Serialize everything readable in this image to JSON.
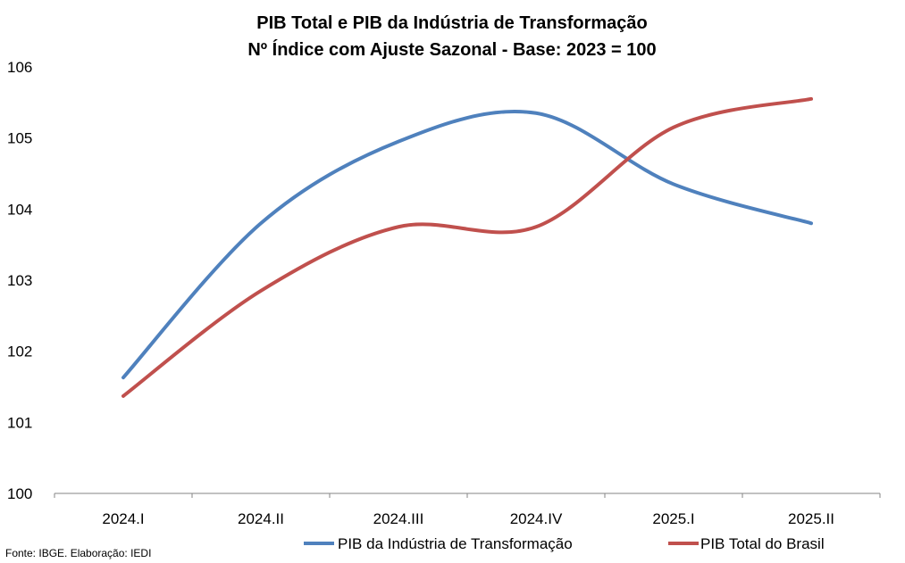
{
  "chart_data": {
    "type": "line",
    "title": "PIB Total e PIB da Indústria de Transformação",
    "subtitle": "Nº Índice com Ajuste Sazonal - Base: 2023 = 100",
    "categories": [
      "2024.I",
      "2024.II",
      "2024.III",
      "2024.IV",
      "2025.I",
      "2025.II"
    ],
    "series": [
      {
        "name": "PIB da Indústria de Transformação",
        "color": "#4F81BD",
        "values": [
          101.63,
          103.8,
          104.95,
          105.35,
          104.35,
          103.8
        ]
      },
      {
        "name": "PIB Total do Brasil",
        "color": "#C0504D",
        "values": [
          101.37,
          102.85,
          103.75,
          103.75,
          105.15,
          105.55
        ]
      }
    ],
    "ylim": [
      100,
      106
    ],
    "yticks": [
      "100",
      "101",
      "102",
      "103",
      "104",
      "105",
      "106"
    ],
    "grid": false,
    "legend_position": "bottom",
    "smooth": true
  },
  "source": "Fonte: IBGE. Elaboração: IEDI"
}
